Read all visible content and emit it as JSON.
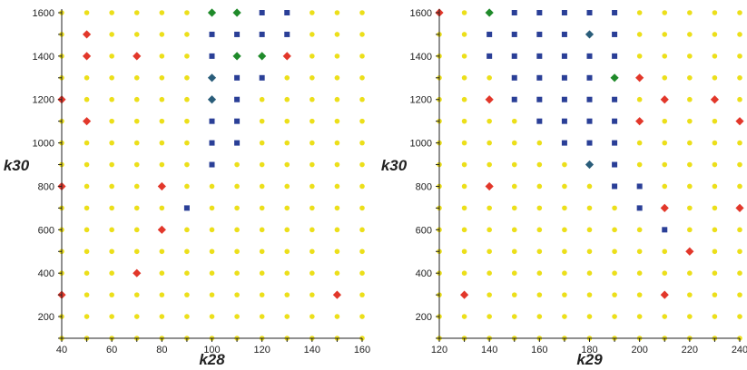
{
  "colors": {
    "yellow": "#ecdf1a",
    "blue": "#2a3f97",
    "red": "#e2372a",
    "green": "#1f8a2a",
    "teal": "#2a5d7a",
    "axis": "#222222"
  },
  "chart_data": [
    {
      "type": "scatter",
      "xlabel": "k28",
      "ylabel": "k30",
      "xlim": [
        40,
        160
      ],
      "ylim": [
        100,
        1600
      ],
      "x_ticks": [
        40,
        60,
        80,
        100,
        120,
        140,
        160
      ],
      "y_ticks": [
        200,
        400,
        600,
        800,
        1000,
        1200,
        1400,
        1600
      ],
      "x_ticks_display": [
        "40",
        "60",
        "80",
        "100",
        "120",
        "140",
        "160"
      ],
      "y_ticks_display": [
        "200",
        "400",
        "600",
        "800",
        "1000",
        "1200",
        "1400",
        "1600"
      ],
      "grid_x": {
        "start": 40,
        "stop": 160,
        "step": 10
      },
      "grid_y": {
        "start": 100,
        "stop": 1600,
        "step": 100
      },
      "default_marker": {
        "shape": "circle",
        "color": "yellow"
      },
      "points": [
        {
          "x": 100,
          "y": 1600,
          "shape": "diamond",
          "color": "green"
        },
        {
          "x": 110,
          "y": 1600,
          "shape": "diamond",
          "color": "green"
        },
        {
          "x": 120,
          "y": 1600,
          "shape": "square",
          "color": "blue"
        },
        {
          "x": 130,
          "y": 1600,
          "shape": "square",
          "color": "blue"
        },
        {
          "x": 50,
          "y": 1500,
          "shape": "diamond",
          "color": "red"
        },
        {
          "x": 100,
          "y": 1500,
          "shape": "square",
          "color": "blue"
        },
        {
          "x": 110,
          "y": 1500,
          "shape": "square",
          "color": "blue"
        },
        {
          "x": 120,
          "y": 1500,
          "shape": "square",
          "color": "blue"
        },
        {
          "x": 130,
          "y": 1500,
          "shape": "square",
          "color": "blue"
        },
        {
          "x": 50,
          "y": 1400,
          "shape": "diamond",
          "color": "red"
        },
        {
          "x": 70,
          "y": 1400,
          "shape": "diamond",
          "color": "red"
        },
        {
          "x": 100,
          "y": 1400,
          "shape": "square",
          "color": "blue"
        },
        {
          "x": 110,
          "y": 1400,
          "shape": "diamond",
          "color": "green"
        },
        {
          "x": 120,
          "y": 1400,
          "shape": "diamond",
          "color": "green"
        },
        {
          "x": 130,
          "y": 1400,
          "shape": "diamond",
          "color": "red"
        },
        {
          "x": 100,
          "y": 1300,
          "shape": "diamond",
          "color": "teal"
        },
        {
          "x": 110,
          "y": 1300,
          "shape": "square",
          "color": "blue"
        },
        {
          "x": 120,
          "y": 1300,
          "shape": "square",
          "color": "blue"
        },
        {
          "x": 40,
          "y": 1200,
          "shape": "diamond",
          "color": "red"
        },
        {
          "x": 100,
          "y": 1200,
          "shape": "diamond",
          "color": "teal"
        },
        {
          "x": 110,
          "y": 1200,
          "shape": "square",
          "color": "blue"
        },
        {
          "x": 50,
          "y": 1100,
          "shape": "diamond",
          "color": "red"
        },
        {
          "x": 100,
          "y": 1100,
          "shape": "square",
          "color": "blue"
        },
        {
          "x": 110,
          "y": 1100,
          "shape": "square",
          "color": "blue"
        },
        {
          "x": 100,
          "y": 1000,
          "shape": "square",
          "color": "blue"
        },
        {
          "x": 110,
          "y": 1000,
          "shape": "square",
          "color": "blue"
        },
        {
          "x": 100,
          "y": 900,
          "shape": "square",
          "color": "blue"
        },
        {
          "x": 40,
          "y": 800,
          "shape": "diamond",
          "color": "red"
        },
        {
          "x": 80,
          "y": 800,
          "shape": "diamond",
          "color": "red"
        },
        {
          "x": 90,
          "y": 700,
          "shape": "square",
          "color": "blue"
        },
        {
          "x": 80,
          "y": 600,
          "shape": "diamond",
          "color": "red"
        },
        {
          "x": 70,
          "y": 400,
          "shape": "diamond",
          "color": "red"
        },
        {
          "x": 40,
          "y": 300,
          "shape": "diamond",
          "color": "red"
        },
        {
          "x": 150,
          "y": 300,
          "shape": "diamond",
          "color": "red"
        }
      ]
    },
    {
      "type": "scatter",
      "xlabel": "k29",
      "ylabel": "k30",
      "xlim": [
        120,
        240
      ],
      "ylim": [
        100,
        1600
      ],
      "x_ticks": [
        120,
        140,
        160,
        180,
        200,
        220,
        240
      ],
      "y_ticks": [
        200,
        400,
        600,
        800,
        1000,
        1200,
        1400,
        1600
      ],
      "x_ticks_display": [
        "120",
        "140",
        "160",
        "180",
        "200",
        "220",
        "240"
      ],
      "y_ticks_display": [
        "200",
        "400",
        "600",
        "800",
        "1000",
        "1200",
        "1400",
        "1600"
      ],
      "grid_x": {
        "start": 120,
        "stop": 240,
        "step": 10
      },
      "grid_y": {
        "start": 100,
        "stop": 1600,
        "step": 100
      },
      "default_marker": {
        "shape": "circle",
        "color": "yellow"
      },
      "points": [
        {
          "x": 120,
          "y": 1600,
          "shape": "diamond",
          "color": "red"
        },
        {
          "x": 140,
          "y": 1600,
          "shape": "diamond",
          "color": "green"
        },
        {
          "x": 150,
          "y": 1600,
          "shape": "square",
          "color": "blue"
        },
        {
          "x": 160,
          "y": 1600,
          "shape": "square",
          "color": "blue"
        },
        {
          "x": 170,
          "y": 1600,
          "shape": "square",
          "color": "blue"
        },
        {
          "x": 180,
          "y": 1600,
          "shape": "square",
          "color": "blue"
        },
        {
          "x": 190,
          "y": 1600,
          "shape": "square",
          "color": "blue"
        },
        {
          "x": 140,
          "y": 1500,
          "shape": "square",
          "color": "blue"
        },
        {
          "x": 150,
          "y": 1500,
          "shape": "square",
          "color": "blue"
        },
        {
          "x": 160,
          "y": 1500,
          "shape": "square",
          "color": "blue"
        },
        {
          "x": 170,
          "y": 1500,
          "shape": "square",
          "color": "blue"
        },
        {
          "x": 180,
          "y": 1500,
          "shape": "diamond",
          "color": "teal"
        },
        {
          "x": 190,
          "y": 1500,
          "shape": "square",
          "color": "blue"
        },
        {
          "x": 140,
          "y": 1400,
          "shape": "square",
          "color": "blue"
        },
        {
          "x": 150,
          "y": 1400,
          "shape": "square",
          "color": "blue"
        },
        {
          "x": 160,
          "y": 1400,
          "shape": "square",
          "color": "blue"
        },
        {
          "x": 170,
          "y": 1400,
          "shape": "square",
          "color": "blue"
        },
        {
          "x": 180,
          "y": 1400,
          "shape": "square",
          "color": "blue"
        },
        {
          "x": 190,
          "y": 1400,
          "shape": "square",
          "color": "blue"
        },
        {
          "x": 150,
          "y": 1300,
          "shape": "square",
          "color": "blue"
        },
        {
          "x": 160,
          "y": 1300,
          "shape": "square",
          "color": "blue"
        },
        {
          "x": 170,
          "y": 1300,
          "shape": "square",
          "color": "blue"
        },
        {
          "x": 180,
          "y": 1300,
          "shape": "square",
          "color": "blue"
        },
        {
          "x": 190,
          "y": 1300,
          "shape": "diamond",
          "color": "green"
        },
        {
          "x": 200,
          "y": 1300,
          "shape": "diamond",
          "color": "red"
        },
        {
          "x": 140,
          "y": 1200,
          "shape": "diamond",
          "color": "red"
        },
        {
          "x": 150,
          "y": 1200,
          "shape": "square",
          "color": "blue"
        },
        {
          "x": 160,
          "y": 1200,
          "shape": "square",
          "color": "blue"
        },
        {
          "x": 170,
          "y": 1200,
          "shape": "square",
          "color": "blue"
        },
        {
          "x": 180,
          "y": 1200,
          "shape": "square",
          "color": "blue"
        },
        {
          "x": 190,
          "y": 1200,
          "shape": "square",
          "color": "blue"
        },
        {
          "x": 210,
          "y": 1200,
          "shape": "diamond",
          "color": "red"
        },
        {
          "x": 230,
          "y": 1200,
          "shape": "diamond",
          "color": "red"
        },
        {
          "x": 160,
          "y": 1100,
          "shape": "square",
          "color": "blue"
        },
        {
          "x": 170,
          "y": 1100,
          "shape": "square",
          "color": "blue"
        },
        {
          "x": 180,
          "y": 1100,
          "shape": "square",
          "color": "blue"
        },
        {
          "x": 190,
          "y": 1100,
          "shape": "square",
          "color": "blue"
        },
        {
          "x": 200,
          "y": 1100,
          "shape": "diamond",
          "color": "red"
        },
        {
          "x": 240,
          "y": 1100,
          "shape": "diamond",
          "color": "red"
        },
        {
          "x": 170,
          "y": 1000,
          "shape": "square",
          "color": "blue"
        },
        {
          "x": 180,
          "y": 1000,
          "shape": "square",
          "color": "blue"
        },
        {
          "x": 190,
          "y": 1000,
          "shape": "square",
          "color": "blue"
        },
        {
          "x": 180,
          "y": 900,
          "shape": "diamond",
          "color": "teal"
        },
        {
          "x": 190,
          "y": 900,
          "shape": "square",
          "color": "blue"
        },
        {
          "x": 140,
          "y": 800,
          "shape": "diamond",
          "color": "red"
        },
        {
          "x": 190,
          "y": 800,
          "shape": "square",
          "color": "blue"
        },
        {
          "x": 200,
          "y": 800,
          "shape": "square",
          "color": "blue"
        },
        {
          "x": 200,
          "y": 700,
          "shape": "square",
          "color": "blue"
        },
        {
          "x": 210,
          "y": 700,
          "shape": "diamond",
          "color": "red"
        },
        {
          "x": 240,
          "y": 700,
          "shape": "diamond",
          "color": "red"
        },
        {
          "x": 210,
          "y": 600,
          "shape": "square",
          "color": "blue"
        },
        {
          "x": 220,
          "y": 500,
          "shape": "diamond",
          "color": "red"
        },
        {
          "x": 130,
          "y": 300,
          "shape": "diamond",
          "color": "red"
        },
        {
          "x": 210,
          "y": 300,
          "shape": "diamond",
          "color": "red"
        }
      ]
    }
  ]
}
